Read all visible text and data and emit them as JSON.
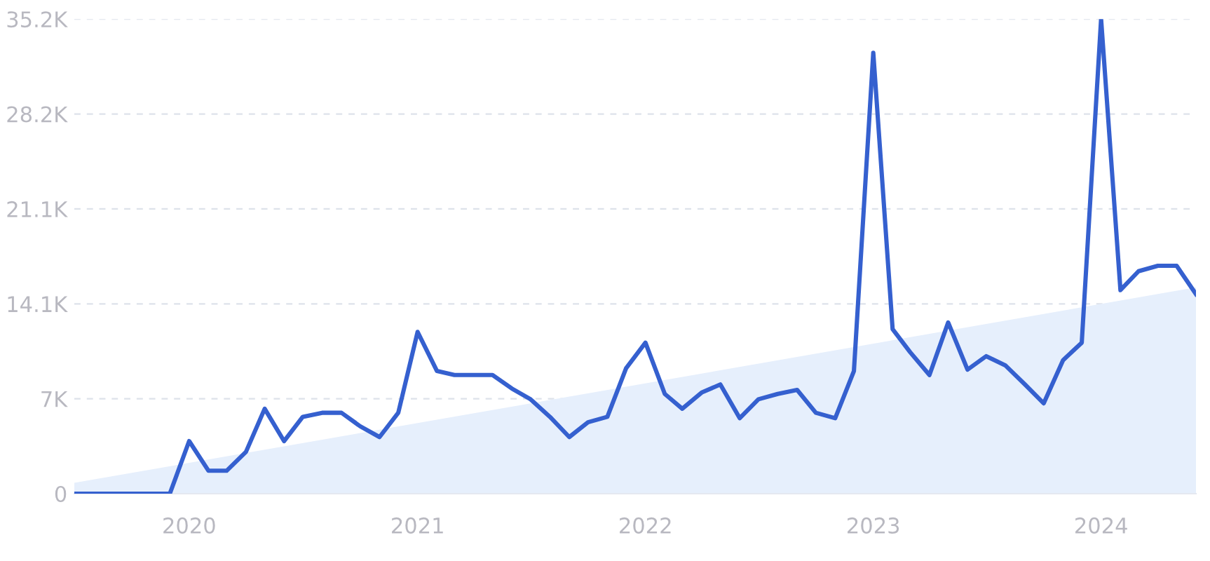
{
  "chart_data": {
    "type": "line",
    "grid": "y",
    "legend": false,
    "xlim": [
      "2019-07",
      "2024-06"
    ],
    "ylim": [
      0,
      35200
    ],
    "xticks": [
      {
        "value": "2020-01",
        "label": "2020"
      },
      {
        "value": "2021-01",
        "label": "2021"
      },
      {
        "value": "2022-01",
        "label": "2022"
      },
      {
        "value": "2023-01",
        "label": "2023"
      },
      {
        "value": "2024-01",
        "label": "2024"
      }
    ],
    "yticks": [
      0,
      {
        "value": 7040,
        "label": "7K"
      },
      {
        "value": 14080,
        "label": "14.1K"
      },
      {
        "value": 21120,
        "label": "21.1K"
      },
      {
        "value": 28160,
        "label": "28.2K"
      },
      {
        "value": 35200,
        "label": "35.2K"
      }
    ],
    "series": [
      {
        "type": "area",
        "color": "#e6effc",
        "x": [
          "2019-07",
          "2024-06"
        ],
        "values": [
          800,
          15300
        ]
      },
      {
        "color": "#3560cf",
        "x": [
          "2019-07",
          "2019-08",
          "2019-09",
          "2019-10",
          "2019-11",
          "2019-12",
          "2020-01",
          "2020-02",
          "2020-03",
          "2020-04",
          "2020-05",
          "2020-06",
          "2020-07",
          "2020-08",
          "2020-09",
          "2020-10",
          "2020-11",
          "2020-12",
          "2021-01",
          "2021-02",
          "2021-03",
          "2021-04",
          "2021-05",
          "2021-06",
          "2021-07",
          "2021-08",
          "2021-09",
          "2021-10",
          "2021-11",
          "2021-12",
          "2022-01",
          "2022-02",
          "2022-03",
          "2022-04",
          "2022-05",
          "2022-06",
          "2022-07",
          "2022-08",
          "2022-09",
          "2022-10",
          "2022-11",
          "2022-12",
          "2023-01",
          "2023-02",
          "2023-03",
          "2023-04",
          "2023-05",
          "2023-06",
          "2023-07",
          "2023-08",
          "2023-09",
          "2023-10",
          "2023-11",
          "2023-12",
          "2024-01",
          "2024-02",
          "2024-03",
          "2024-04",
          "2024-05",
          "2024-06"
        ],
        "values": [
          0,
          0,
          0,
          0,
          0,
          0,
          3900,
          1700,
          1700,
          3100,
          6300,
          3900,
          5700,
          6000,
          6000,
          5000,
          4200,
          6000,
          12000,
          9100,
          8800,
          8800,
          8800,
          7800,
          7000,
          5700,
          4200,
          5300,
          5700,
          9300,
          11200,
          7400,
          6300,
          7500,
          8100,
          5600,
          7000,
          7400,
          7700,
          6000,
          5600,
          9100,
          32700,
          12200,
          10500,
          8800,
          12700,
          9200,
          10200,
          9500,
          8100,
          6700,
          9900,
          11200,
          35200,
          15100,
          16500,
          16900,
          16900,
          14800
        ]
      }
    ]
  }
}
